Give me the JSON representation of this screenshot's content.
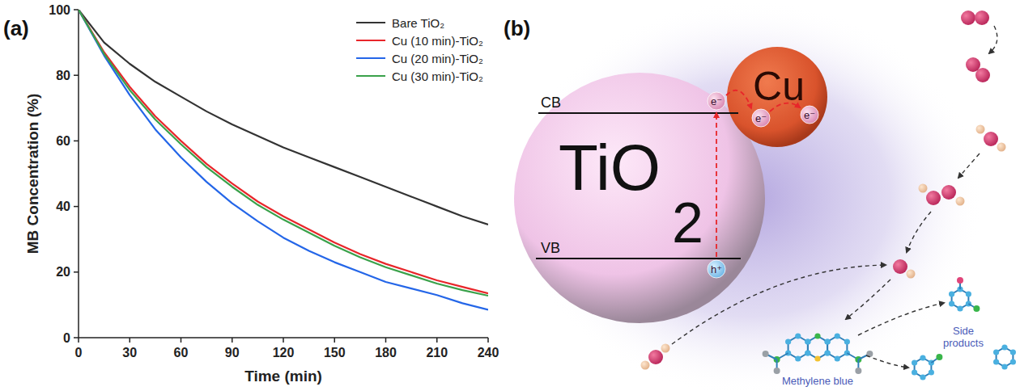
{
  "chart_data": {
    "type": "line",
    "annotations": [
      "(a)"
    ],
    "x_label": "Time (min)",
    "y_label": "MB Concentration (%)",
    "x": [
      0,
      15,
      30,
      45,
      60,
      75,
      90,
      105,
      120,
      135,
      150,
      165,
      180,
      195,
      210,
      225,
      240
    ],
    "series": [
      {
        "name": "Bare TiO₂",
        "color": "#333333",
        "values": [
          100,
          90,
          83.5,
          78,
          73.5,
          69,
          65,
          61.5,
          58,
          55,
          52,
          49,
          46,
          43,
          40,
          37,
          34.5
        ]
      },
      {
        "name": "Cu (10 min)-TiO₂",
        "color": "#e8262a",
        "values": [
          100,
          87,
          76.5,
          67.5,
          60,
          53,
          47,
          41.5,
          37,
          33,
          29,
          25.5,
          22.5,
          20,
          17.5,
          15.5,
          13.5
        ]
      },
      {
        "name": "Cu (20 min)-TiO₂",
        "color": "#2466e8",
        "values": [
          100,
          86,
          74,
          63.5,
          55,
          47.5,
          41,
          35.5,
          30.5,
          26.5,
          23,
          20,
          17,
          15,
          13,
          10.5,
          8.5
        ]
      },
      {
        "name": "Cu (30 min)-TiO₂",
        "color": "#3aa14a",
        "values": [
          100,
          86.5,
          75.5,
          66.5,
          59,
          52,
          46,
          40.5,
          36,
          32,
          28,
          24.5,
          21.5,
          19,
          16.5,
          14.5,
          12.8
        ]
      }
    ],
    "xlim": [
      0,
      240
    ],
    "ylim": [
      0,
      100
    ],
    "xticks": [
      0,
      30,
      60,
      90,
      120,
      150,
      180,
      210,
      240
    ],
    "yticks": [
      0,
      20,
      40,
      60,
      80,
      100
    ],
    "grid": false,
    "legend": "upper right"
  },
  "diagram": {
    "label": "(b)",
    "semiconductor": "TiO",
    "subscript": "2",
    "bands": [
      "CB",
      "VB"
    ],
    "electrons": [
      "e⁻",
      "e⁻",
      "e⁻"
    ],
    "hole": "h⁺",
    "cocatalyst": "Cu",
    "dye": "Methylene blue",
    "products": "Side products"
  }
}
